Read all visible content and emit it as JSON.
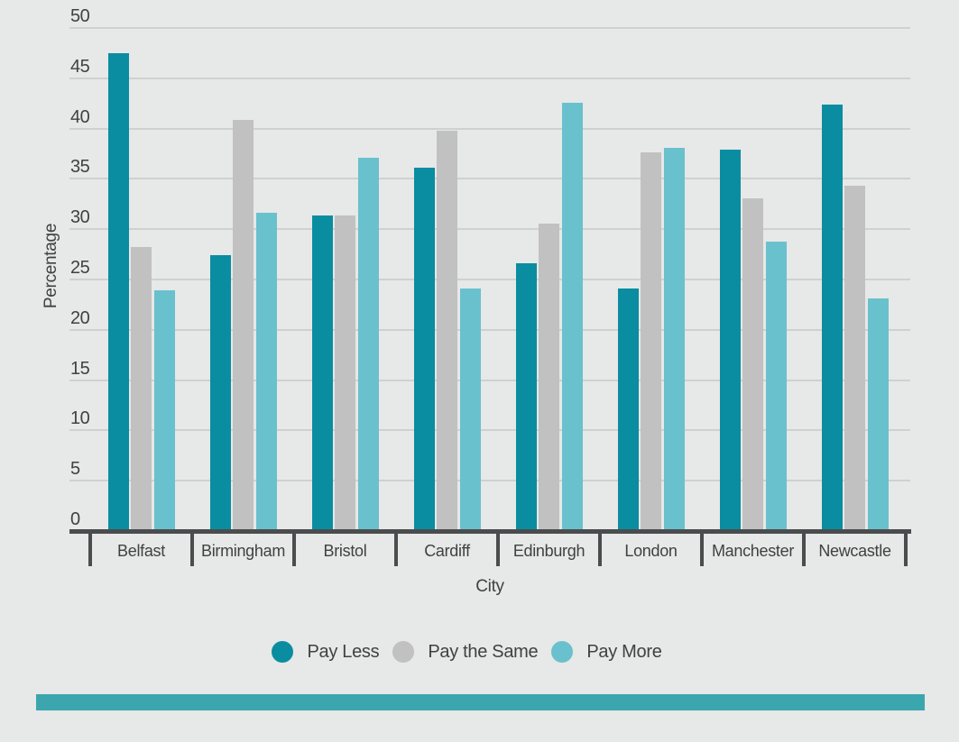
{
  "chart_data": {
    "type": "bar",
    "title": "",
    "xlabel": "City",
    "ylabel": "Percentage",
    "categories": [
      "Belfast",
      "Birmingham",
      "Bristol",
      "Cardiff",
      "Edinburgh",
      "London",
      "Manchester",
      "Newcastle"
    ],
    "series": [
      {
        "name": "Pay Less",
        "color": "#0a8da0",
        "values": [
          47.5,
          27.4,
          31.4,
          36.1,
          26.6,
          24.1,
          37.9,
          42.4
        ]
      },
      {
        "name": "Pay the Same",
        "color": "#c1c1c2",
        "values": [
          28.2,
          40.9,
          31.4,
          39.8,
          30.6,
          37.6,
          33.1,
          34.3
        ]
      },
      {
        "name": "Pay More",
        "color": "#69c1cd",
        "values": [
          23.9,
          31.6,
          37.1,
          24.1,
          42.6,
          38.1,
          28.8,
          23.1
        ]
      }
    ],
    "ylim": [
      0,
      50
    ],
    "ytick_step": 5,
    "yticks": [
      0,
      5,
      10,
      15,
      20,
      25,
      30,
      35,
      40,
      45,
      50
    ],
    "grid": "horizontal",
    "legend_position": "bottom"
  },
  "colors": {
    "background": "#e7e8e8",
    "gridline": "#cfd1d1",
    "axis": "#4b4c4e",
    "text": "#414042",
    "accent_bar": "#3ba6ae"
  }
}
